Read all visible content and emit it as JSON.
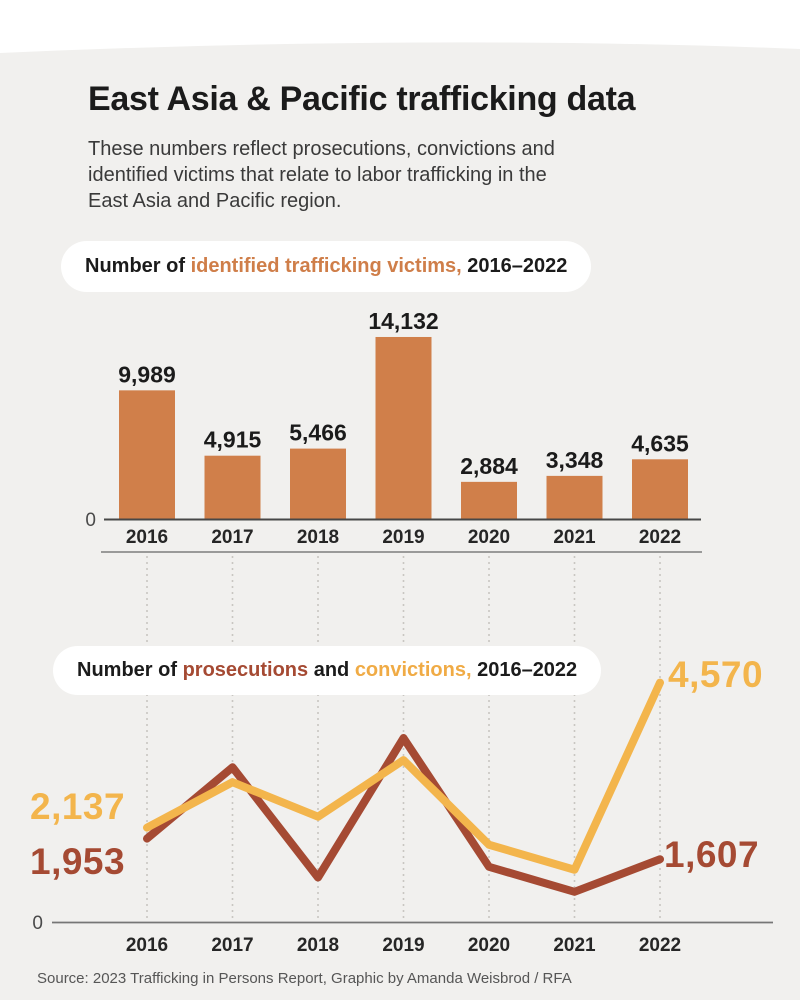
{
  "page": {
    "title": "East Asia & Pacific trafficking data",
    "subtitle": "These numbers reflect prosecutions, convictions and\nidentified victims that relate to labor trafficking in the\nEast Asia and Pacific region.",
    "footer": "Source: 2023 Trafficking in Persons Report, Graphic by Amanda Weisbrod / RFA"
  },
  "sections": {
    "victims": {
      "prefix": "Number of ",
      "highlight": "identified trafficking victims,",
      "suffix": " 2016–2022"
    },
    "lines": {
      "prefix": "Number of ",
      "prosecutions_word": "prosecutions",
      "mid": " and ",
      "convictions_word": "convictions,",
      "suffix": " 2016–2022"
    }
  },
  "colors": {
    "background_panel": "#f1f0ee",
    "bar_orange": "#d07f4a",
    "prosecutions_red": "#a54a33",
    "convictions_yellow": "#f3b54c",
    "text_dark": "#1b1b1b"
  },
  "chart_data": [
    {
      "type": "bar",
      "title": "Number of identified trafficking victims, 2016–2022",
      "categories": [
        "2016",
        "2017",
        "2018",
        "2019",
        "2020",
        "2021",
        "2022"
      ],
      "values": [
        9989,
        4915,
        5466,
        14132,
        2884,
        3348,
        4635
      ],
      "value_labels": [
        "9,989",
        "4,915",
        "5,466",
        "14,132",
        "2,884",
        "3,348",
        "4,635"
      ],
      "bar_color": "#d07f4a",
      "zero_label": "0",
      "ylim": [
        0,
        14500
      ],
      "grid": false,
      "legend": "none"
    },
    {
      "type": "line",
      "title": "Number of prosecutions and convictions, 2016–2022",
      "categories": [
        "2016",
        "2017",
        "2018",
        "2019",
        "2020",
        "2021",
        "2022"
      ],
      "series": [
        {
          "name": "prosecutions",
          "color": "#a54a33",
          "values": [
            1953,
            3150,
            1300,
            3640,
            1480,
            1060,
            1607
          ],
          "start_label": "1,953",
          "end_label": "1,607"
        },
        {
          "name": "convictions",
          "color": "#f3b54c",
          "values": [
            2137,
            2900,
            2320,
            3270,
            1850,
            1430,
            4570
          ],
          "start_label": "2,137",
          "end_label": "4,570"
        }
      ],
      "zero_label": "0",
      "ylim": [
        0,
        4600
      ],
      "grid": "dotted-vertical",
      "legend": "inline-title"
    }
  ]
}
